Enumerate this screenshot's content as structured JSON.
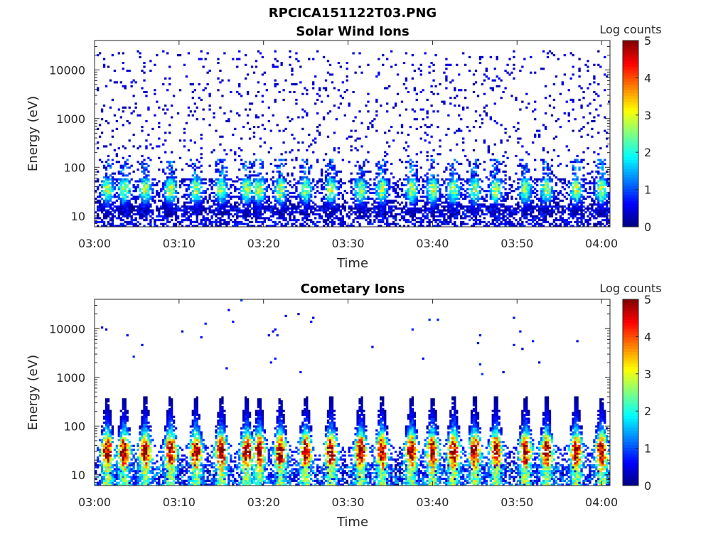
{
  "figure": {
    "file_title": "RPCICA151122T03.PNG"
  },
  "chart_data": [
    {
      "type": "heatmap",
      "title": "Solar Wind Ions",
      "xlabel": "Time",
      "ylabel": "Energy (eV)",
      "x_ticks": [
        "03:00",
        "03:10",
        "03:20",
        "03:30",
        "03:40",
        "03:50",
        "04:00"
      ],
      "x_range": [
        "03:00",
        "04:01"
      ],
      "y_scale": "log",
      "y_ticks": [
        "10",
        "100",
        "1000",
        "10000"
      ],
      "y_range": [
        6,
        40000
      ],
      "colorbar": {
        "label": "Log counts",
        "ticks": [
          "0",
          "1",
          "2",
          "3",
          "4",
          "5"
        ],
        "range": [
          0,
          5
        ],
        "colormap": "jet"
      },
      "pulse_minutes": [
        1.5,
        3.5,
        6.0,
        9.0,
        12.0,
        15.0,
        18.0,
        19.5,
        22.0,
        25.0,
        28.0,
        31.5,
        34.0,
        37.5,
        40.0,
        42.5,
        45.0,
        47.5,
        51.0,
        53.5,
        57.0,
        60.0
      ],
      "dominant_energy_eV": 35,
      "peak_log_counts": 3.0,
      "background": "sparse log counts 0-1 from 30 eV to 20000 eV"
    },
    {
      "type": "heatmap",
      "title": "Cometary Ions",
      "xlabel": "Time",
      "ylabel": "Energy (eV)",
      "x_ticks": [
        "03:00",
        "03:10",
        "03:20",
        "03:30",
        "03:40",
        "03:50",
        "04:00"
      ],
      "x_range": [
        "03:00",
        "04:01"
      ],
      "y_scale": "log",
      "y_ticks": [
        "10",
        "100",
        "1000",
        "10000"
      ],
      "y_range": [
        6,
        40000
      ],
      "colorbar": {
        "label": "Log counts",
        "ticks": [
          "0",
          "1",
          "2",
          "3",
          "4",
          "5"
        ],
        "range": [
          0,
          5
        ],
        "colormap": "jet"
      },
      "pulse_minutes": [
        1.5,
        3.5,
        6.0,
        9.0,
        12.0,
        15.0,
        18.0,
        19.5,
        22.0,
        25.0,
        28.0,
        31.5,
        34.0,
        37.5,
        40.0,
        42.5,
        45.0,
        47.5,
        51.0,
        53.5,
        57.0,
        60.0
      ],
      "dominant_energy_eV": 32,
      "peak_log_counts": 4.0,
      "background": "sparse log counts 0-1 above 1000 eV"
    }
  ]
}
